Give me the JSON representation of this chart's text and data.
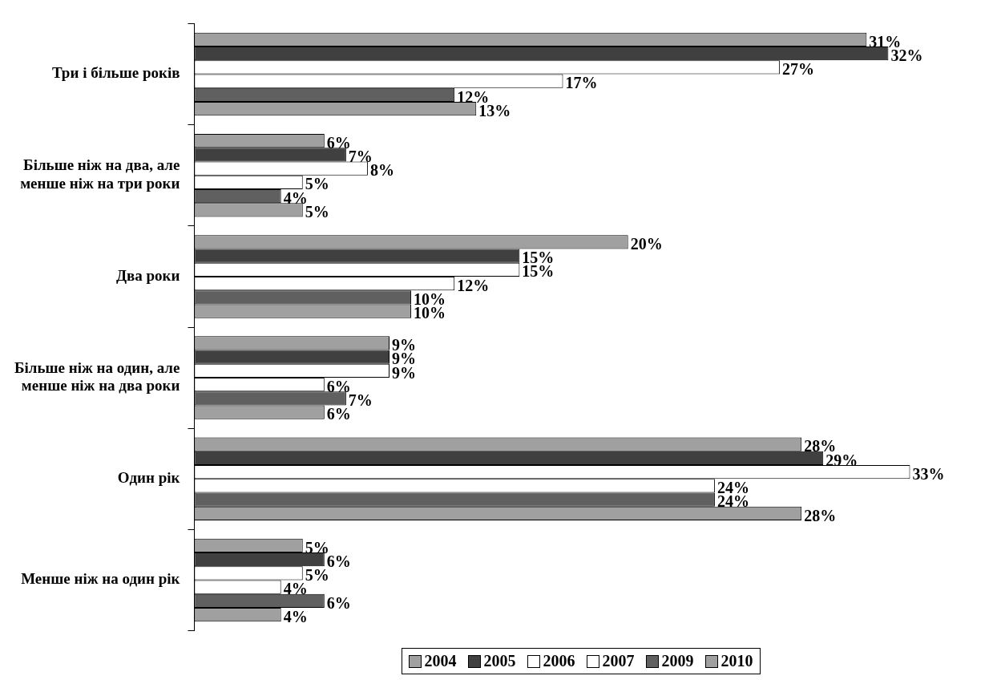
{
  "chart_data": {
    "type": "bar",
    "orientation": "horizontal",
    "legend": "bottom",
    "categories": [
      "Три і більше років",
      "Більше ніж на два, але\nменше ніж на три роки",
      "Два роки",
      "Більше ніж на один, але\nменше ніж на два роки",
      "Один рік",
      "Менше ніж на один рік"
    ],
    "series": [
      {
        "name": "2004",
        "color": "#a0a0a0",
        "values": [
          31,
          6,
          20,
          9,
          28,
          5
        ],
        "value_labels": [
          "31%",
          "6%",
          "20%",
          "9%",
          "28%",
          "5%"
        ]
      },
      {
        "name": "2005",
        "color": "#404040",
        "values": [
          32,
          7,
          15,
          9,
          29,
          6
        ],
        "value_labels": [
          "32%",
          "7%",
          "15%",
          "9%",
          "29%",
          "6%"
        ]
      },
      {
        "name": "2006",
        "color": "#ffffff",
        "values": [
          27,
          8,
          15,
          9,
          33,
          5
        ],
        "value_labels": [
          "27%",
          "8%",
          "15%",
          "9%",
          "33%",
          "5%"
        ]
      },
      {
        "name": "2007",
        "color": "#ffffff",
        "values": [
          17,
          5,
          12,
          6,
          24,
          4
        ],
        "value_labels": [
          "17%",
          "5%",
          "12%",
          "6%",
          "24%",
          "4%"
        ]
      },
      {
        "name": "2009",
        "color": "#606060",
        "values": [
          12,
          4,
          10,
          7,
          24,
          6
        ],
        "value_labels": [
          "12%",
          "4%",
          "10%",
          "7%",
          "24%",
          "6%"
        ]
      },
      {
        "name": "2010",
        "color": "#a0a0a0",
        "values": [
          13,
          5,
          10,
          6,
          28,
          4
        ],
        "value_labels": [
          "13%",
          "5%",
          "10%",
          "6%",
          "28%",
          "4%"
        ]
      }
    ]
  }
}
